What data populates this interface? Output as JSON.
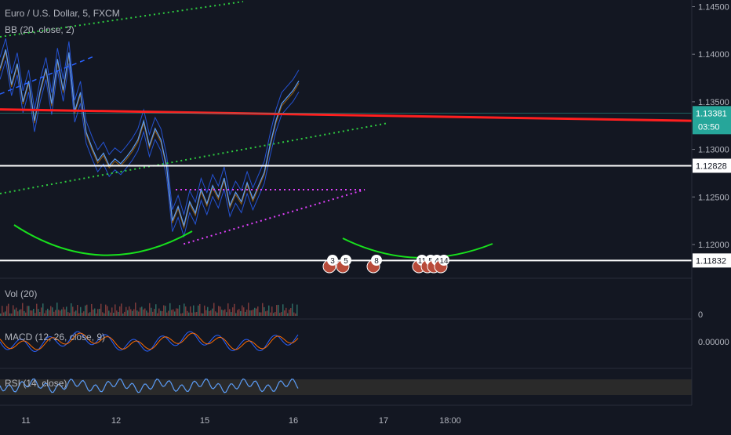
{
  "symbol_title": "Euro / U.S. Dollar, 5, FXCM",
  "indicators": {
    "bb": "BB (20, close, 2)",
    "vol": "Vol (20)",
    "macd": "MACD (12, 26, close, 9)",
    "rsi": "RSI (14, close)"
  },
  "colors": {
    "background": "#131722",
    "price_line": "#5b9cf6",
    "bands": "#2962ff",
    "resistance": "#ff1f1f",
    "support": "#ffffff",
    "channel": "#2ecc40",
    "triangle": "#e040fb",
    "curve": "#18e01d",
    "current_price_badge": "#26a69a",
    "rsi_band": "#2a2a2a"
  },
  "chart_data": {
    "type": "line",
    "x_ticks": [
      "11",
      "12",
      "15",
      "16",
      "17",
      "18:00"
    ],
    "price_axis": {
      "ylim": [
        1.1167,
        1.1457
      ],
      "ticks": [
        "1.14500",
        "1.14000",
        "1.13500",
        "1.13000",
        "1.12500",
        "1.12000"
      ]
    },
    "price_series": [
      1.1385,
      1.1405,
      1.1368,
      1.139,
      1.135,
      1.1372,
      1.133,
      1.1362,
      1.1385,
      1.1348,
      1.1395,
      1.1362,
      1.1402,
      1.134,
      1.136,
      1.1318,
      1.1302,
      1.1288,
      1.1296,
      1.1283,
      1.129,
      1.1285,
      1.1292,
      1.13,
      1.131,
      1.133,
      1.1304,
      1.1322,
      1.131,
      1.1282,
      1.1225,
      1.124,
      1.122,
      1.1245,
      1.1233,
      1.1258,
      1.1243,
      1.1262,
      1.125,
      1.127,
      1.1241,
      1.1255,
      1.1245,
      1.1265,
      1.1248,
      1.1262,
      1.1276,
      1.1305,
      1.133,
      1.1348,
      1.1355,
      1.1362,
      1.1372
    ],
    "current_price": "1.13381",
    "countdown": "03:50",
    "resistance_line": [
      1.1342,
      1.133
    ],
    "support_levels": [
      {
        "value": 1.12828,
        "label": "1.12828"
      },
      {
        "value": 1.11832,
        "label": "1.11832"
      }
    ],
    "event_flags": [
      "3",
      "5",
      "8",
      "11",
      "5",
      "4",
      "14"
    ],
    "macd_axis": {
      "ticks": [
        "0.00000"
      ]
    },
    "volume_axis": {
      "ticks": [
        "0"
      ]
    },
    "grid": false,
    "legend": "top-left"
  }
}
